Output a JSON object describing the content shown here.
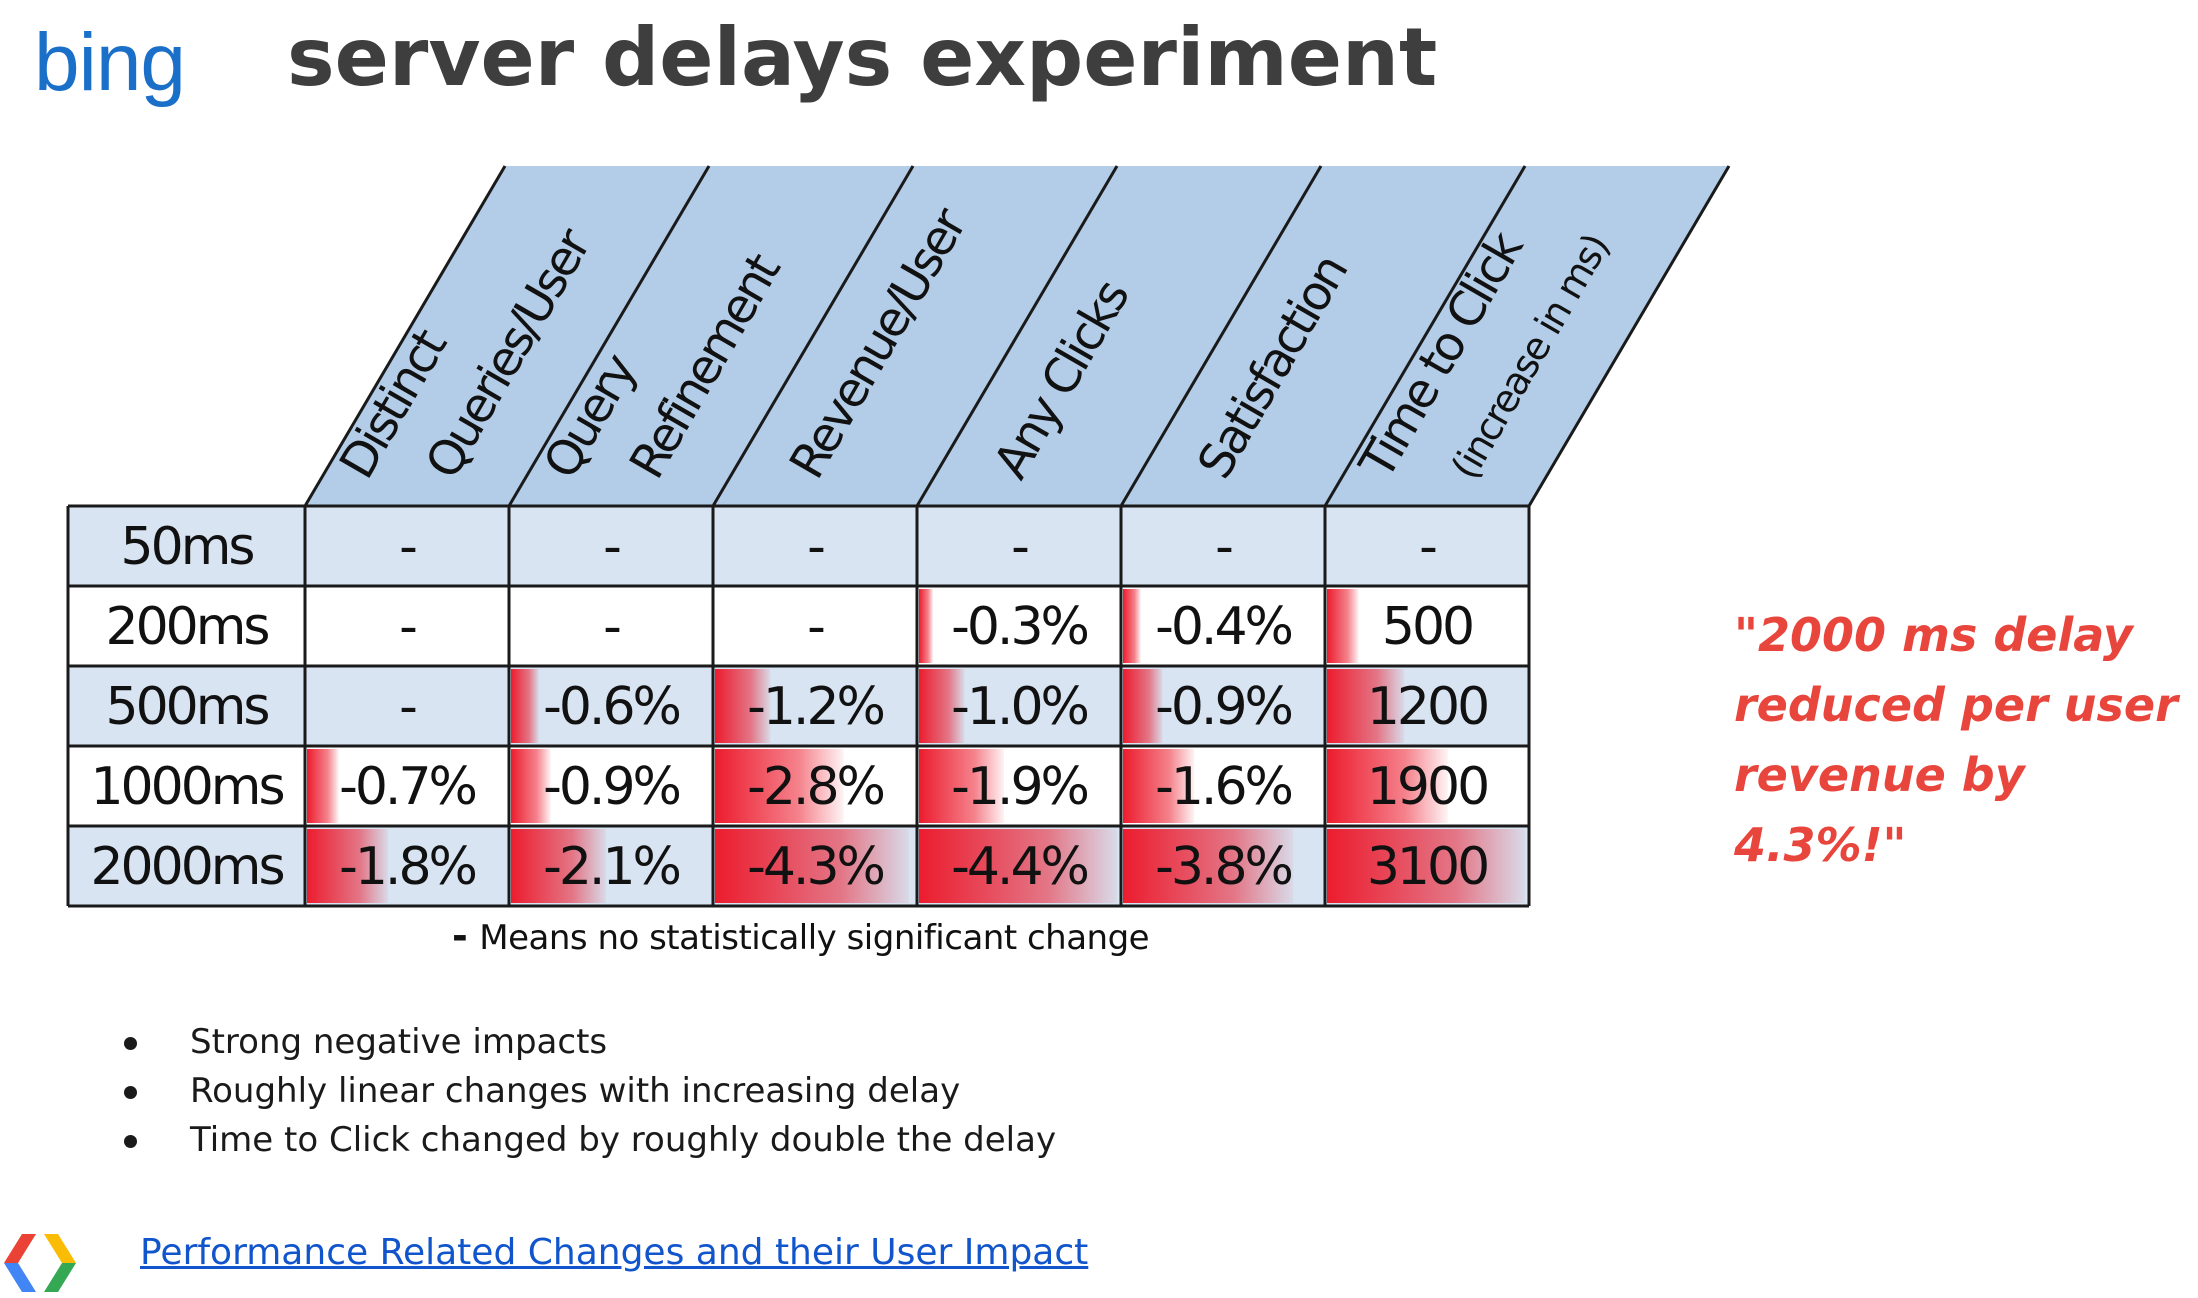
{
  "header": {
    "logo_text": "bing",
    "title": "server delays experiment"
  },
  "table": {
    "columns": [
      {
        "line1": "Distinct",
        "line2": "Queries/User"
      },
      {
        "line1": "Query",
        "line2": "Refinement"
      },
      {
        "line1": "Revenue/User",
        "line2": ""
      },
      {
        "line1": "Any Clicks",
        "line2": ""
      },
      {
        "line1": "Satisfaction",
        "line2": ""
      },
      {
        "line1": "Time to Click",
        "line2": "(increase in ms)"
      }
    ],
    "rows": [
      {
        "label": "50ms",
        "cells": [
          "-",
          "-",
          "-",
          "-",
          "-",
          "-"
        ],
        "magnitude": [
          0,
          0,
          0,
          0,
          0,
          0
        ]
      },
      {
        "label": "200ms",
        "cells": [
          "-",
          "-",
          "-",
          "-0.3%",
          "-0.4%",
          "500"
        ],
        "magnitude": [
          0,
          0,
          0,
          0.07,
          0.09,
          0.16
        ]
      },
      {
        "label": "500ms",
        "cells": [
          "-",
          "-0.6%",
          "-1.2%",
          "-1.0%",
          "-0.9%",
          "1200"
        ],
        "magnitude": [
          0,
          0.14,
          0.28,
          0.23,
          0.2,
          0.39
        ]
      },
      {
        "label": "1000ms",
        "cells": [
          "-0.7%",
          "-0.9%",
          "-2.8%",
          "-1.9%",
          "-1.6%",
          "1900"
        ],
        "magnitude": [
          0.16,
          0.2,
          0.65,
          0.43,
          0.36,
          0.61
        ]
      },
      {
        "label": "2000ms",
        "cells": [
          "-1.8%",
          "-2.1%",
          "-4.3%",
          "-4.4%",
          "-3.8%",
          "3100"
        ],
        "magnitude": [
          0.41,
          0.48,
          0.98,
          1.0,
          0.86,
          1.0
        ]
      }
    ],
    "footnote_dash": "-",
    "footnote": "Means no statistically significant change",
    "colors": {
      "header_fill": "#b3cde8",
      "row_alt_fill": "#d8e4f2",
      "row_fill": "#ffffff",
      "heat": "#ec1c2e",
      "border": "#1a1a1a"
    }
  },
  "quote": "\"2000 ms delay reduced per user revenue by 4.3%!\"",
  "bullets": [
    "Strong negative impacts",
    "Roughly linear changes with increasing delay",
    "Time to Click changed by roughly double the delay"
  ],
  "footer": {
    "logo_icon": "google-developers-icon",
    "link_text": "Performance Related Changes and their User Impact"
  }
}
